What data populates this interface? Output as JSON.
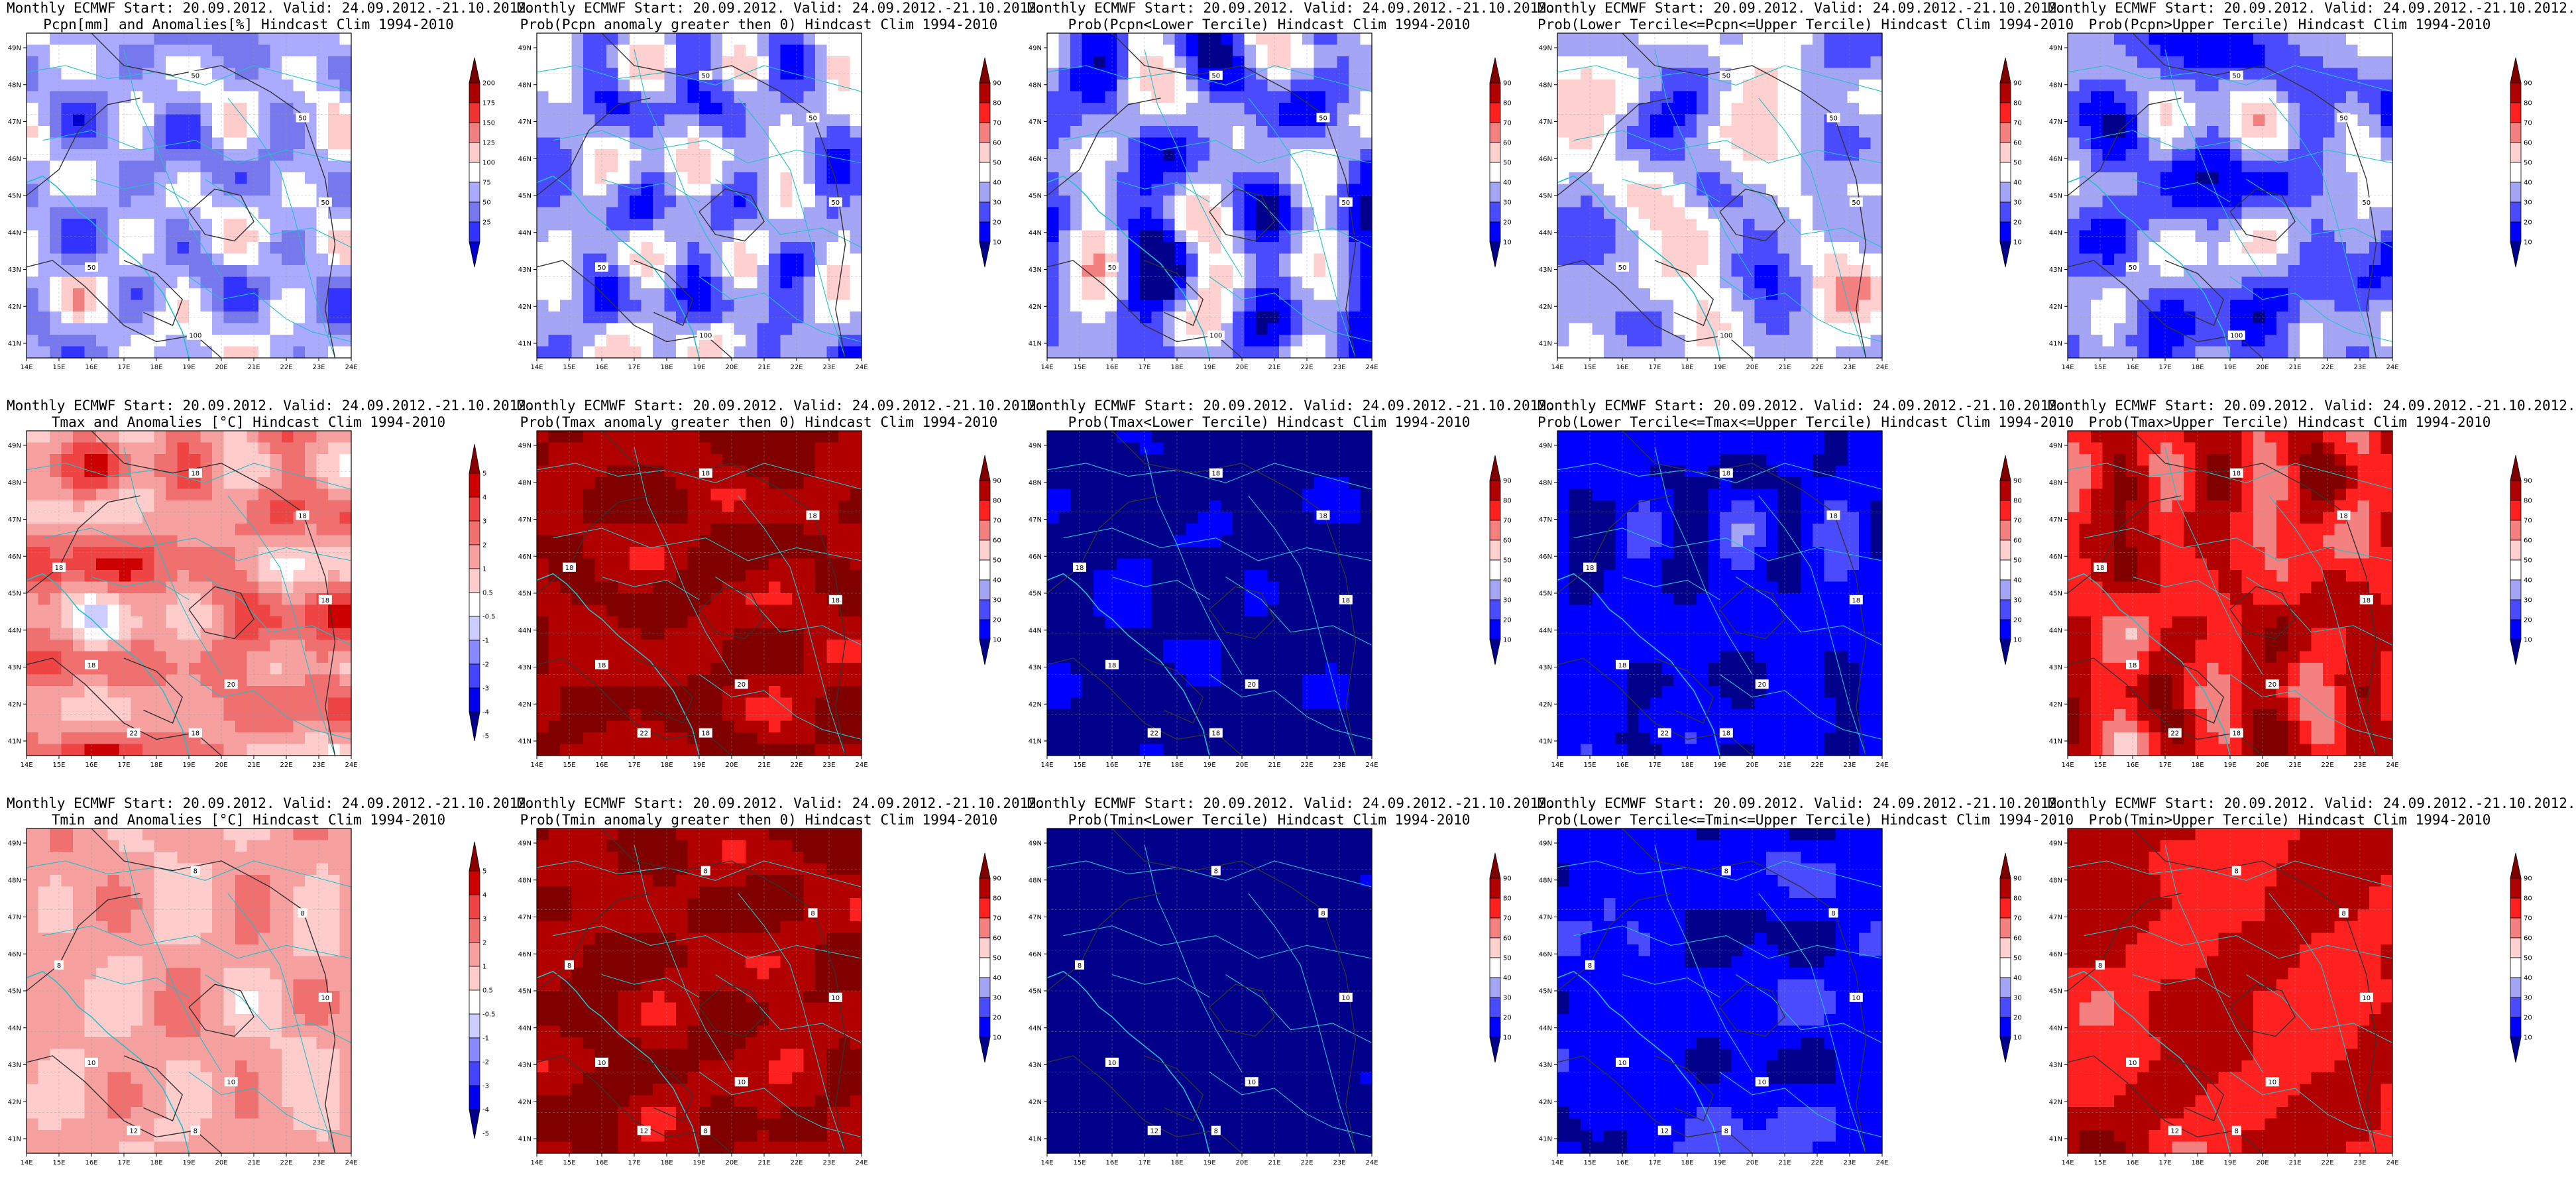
{
  "palettes": {
    "pcpn_anom": [
      "#0000cc",
      "#3333ff",
      "#7777ee",
      "#aaaaff",
      "#ffffff",
      "#ffcccc",
      "#f08080",
      "#ee3333",
      "#aa0000",
      "#770000"
    ],
    "prob": [
      "#00008b",
      "#0000ff",
      "#4a4aff",
      "#a5a5f5",
      "#ffffff",
      "#ffd0d0",
      "#f58080",
      "#ff2020",
      "#b00000",
      "#800000"
    ],
    "temp_anom": [
      "#00008b",
      "#0000ee",
      "#4444ff",
      "#8888ff",
      "#ccccff",
      "#ffffff",
      "#ffcccc",
      "#f6a0a0",
      "#f07070",
      "#ee4444",
      "#cc0000",
      "#880000"
    ]
  },
  "colorbars": {
    "pcpn_anom": {
      "labels": [
        "200",
        "175",
        "150",
        "125",
        "100",
        "75",
        "50",
        "25"
      ]
    },
    "prob": {
      "labels": [
        "90",
        "80",
        "70",
        "60",
        "50",
        "40",
        "30",
        "20",
        "10"
      ]
    },
    "temp_anom": {
      "labels": [
        "5",
        "4",
        "3",
        "2",
        "1",
        "0.5",
        "-0.5",
        "-1",
        "-2",
        "-3",
        "-4",
        "-5"
      ]
    }
  },
  "axes": {
    "x_ticks": [
      "14E",
      "15E",
      "16E",
      "17E",
      "18E",
      "19E",
      "20E",
      "21E",
      "22E",
      "23E",
      "24E"
    ],
    "y_ticks": [
      "49N",
      "48N",
      "47N",
      "46N",
      "45N",
      "44N",
      "43N",
      "42N",
      "41N"
    ]
  },
  "panels": [
    {
      "id": "pcpn-anomaly",
      "line1": "Monthly ECMWF Start: 20.09.2012. Valid: 24.09.2012.-21.10.2012.",
      "line2": "Pcpn[mm] and Anomalies[%] Hindcast Clim 1994-2010",
      "palette": "pcpn_anom",
      "base": 3,
      "var": 1.1,
      "contours": [
        "50",
        "50",
        "50",
        "50",
        "100"
      ]
    },
    {
      "id": "pcpn-prob-anom-gt0",
      "line1": "Monthly ECMWF Start: 20.09.2012. Valid: 24.09.2012.-21.10.2012.",
      "line2": "Prob(Pcpn anomaly greater then 0) Hindcast Clim 1994-2010",
      "palette": "prob",
      "base": 3,
      "var": 1.4,
      "contours": [
        "50",
        "50",
        "50",
        "50",
        "100"
      ]
    },
    {
      "id": "pcpn-prob-lower-tercile",
      "line1": "Monthly ECMWF Start: 20.09.2012. Valid: 24.09.2012.-21.10.2012.",
      "line2": "Prob(Pcpn<Lower Tercile) Hindcast Clim 1994-2010",
      "palette": "prob",
      "base": 2.6,
      "var": 1.6,
      "contours": [
        "50",
        "50",
        "50",
        "50",
        "100"
      ]
    },
    {
      "id": "pcpn-prob-middle-tercile",
      "line1": "Monthly ECMWF Start: 20.09.2012. Valid: 24.09.2012.-21.10.2012.",
      "line2": "Prob(Lower Tercile<=Pcpn<=Upper Tercile) Hindcast Clim 1994-2010",
      "palette": "prob",
      "base": 3.4,
      "var": 1.1,
      "contours": [
        "50",
        "50",
        "50",
        "50",
        "100"
      ]
    },
    {
      "id": "pcpn-prob-upper-tercile",
      "line1": "Monthly ECMWF Start: 20.09.2012. Valid: 24.09.2012.-21.10.2012.",
      "line2": "Prob(Pcpn>Upper Tercile) Hindcast Clim 1994-2010",
      "palette": "prob",
      "base": 2.5,
      "var": 1.2,
      "contours": [
        "50",
        "50",
        "50",
        "50",
        "100"
      ]
    },
    {
      "id": "tmax-anomaly",
      "line1": "Monthly ECMWF Start: 20.09.2012. Valid: 24.09.2012.-21.10.2012.",
      "line2": "Tmax and Anomalies [°C] Hindcast Clim 1994-2010",
      "palette": "temp_anom",
      "base": 7.4,
      "var": 1.2,
      "contours": [
        "18",
        "18",
        "18",
        "18",
        "18",
        "18",
        "20",
        "22"
      ]
    },
    {
      "id": "tmax-prob-anom-gt0",
      "line1": "Monthly ECMWF Start: 20.09.2012. Valid: 24.09.2012.-21.10.2012.",
      "line2": "Prob(Tmax anomaly greater then 0) Hindcast Clim 1994-2010",
      "palette": "prob",
      "base": 8.4,
      "var": 0.6,
      "contours": [
        "18",
        "18",
        "18",
        "18",
        "18",
        "18",
        "20",
        "22"
      ]
    },
    {
      "id": "tmax-prob-lower-tercile",
      "line1": "Monthly ECMWF Start: 20.09.2012. Valid: 24.09.2012.-21.10.2012.",
      "line2": "Prob(Tmax<Lower Tercile) Hindcast Clim 1994-2010",
      "palette": "prob",
      "base": 0.15,
      "var": 0.4,
      "contours": [
        "18",
        "18",
        "18",
        "18",
        "18",
        "18",
        "20",
        "22"
      ]
    },
    {
      "id": "tmax-prob-middle-tercile",
      "line1": "Monthly ECMWF Start: 20.09.2012. Valid: 24.09.2012.-21.10.2012.",
      "line2": "Prob(Lower Tercile<=Tmax<=Upper Tercile) Hindcast Clim 1994-2010",
      "palette": "prob",
      "base": 0.8,
      "var": 0.6,
      "contours": [
        "18",
        "18",
        "18",
        "18",
        "18",
        "18",
        "20",
        "22"
      ]
    },
    {
      "id": "tmax-prob-upper-tercile",
      "line1": "Monthly ECMWF Start: 20.09.2012. Valid: 24.09.2012.-21.10.2012.",
      "line2": "Prob(Tmax>Upper Tercile) Hindcast Clim 1994-2010",
      "palette": "prob",
      "base": 7.4,
      "var": 0.9,
      "contours": [
        "18",
        "18",
        "18",
        "18",
        "18",
        "18",
        "20",
        "22"
      ]
    },
    {
      "id": "tmin-anomaly",
      "line1": "Monthly ECMWF Start: 20.09.2012. Valid: 24.09.2012.-21.10.2012.",
      "line2": "Tmin and Anomalies [°C] Hindcast Clim 1994-2010",
      "palette": "temp_anom",
      "base": 6.8,
      "var": 0.7,
      "contours": [
        "8",
        "8",
        "10",
        "10",
        "8",
        "8",
        "10",
        "12"
      ]
    },
    {
      "id": "tmin-prob-anom-gt0",
      "line1": "Monthly ECMWF Start: 20.09.2012. Valid: 24.09.2012.-21.10.2012.",
      "line2": "Prob(Tmin anomaly greater then 0) Hindcast Clim 1994-2010",
      "palette": "prob",
      "base": 8.4,
      "var": 0.6,
      "contours": [
        "8",
        "8",
        "10",
        "10",
        "8",
        "8",
        "10",
        "12"
      ]
    },
    {
      "id": "tmin-prob-lower-tercile",
      "line1": "Monthly ECMWF Start: 20.09.2012. Valid: 24.09.2012.-21.10.2012.",
      "line2": "Prob(Tmin<Lower Tercile) Hindcast Clim 1994-2010",
      "palette": "prob",
      "base": 0.05,
      "var": 0.2,
      "contours": [
        "8",
        "8",
        "10",
        "10",
        "8",
        "8",
        "10",
        "12"
      ]
    },
    {
      "id": "tmin-prob-middle-tercile",
      "line1": "Monthly ECMWF Start: 20.09.2012. Valid: 24.09.2012.-21.10.2012.",
      "line2": "Prob(Lower Tercile<=Tmin<=Upper Tercile) Hindcast Clim 1994-2010",
      "palette": "prob",
      "base": 1.0,
      "var": 0.6,
      "contours": [
        "8",
        "8",
        "10",
        "10",
        "8",
        "8",
        "10",
        "12"
      ]
    },
    {
      "id": "tmin-prob-upper-tercile",
      "line1": "Monthly ECMWF Start: 20.09.2012. Valid: 24.09.2012.-21.10.2012.",
      "line2": "Prob(Tmin>Upper Tercile) Hindcast Clim 1994-2010",
      "palette": "prob",
      "base": 7.5,
      "var": 0.8,
      "contours": [
        "8",
        "8",
        "10",
        "10",
        "8",
        "8",
        "10",
        "12"
      ]
    }
  ]
}
